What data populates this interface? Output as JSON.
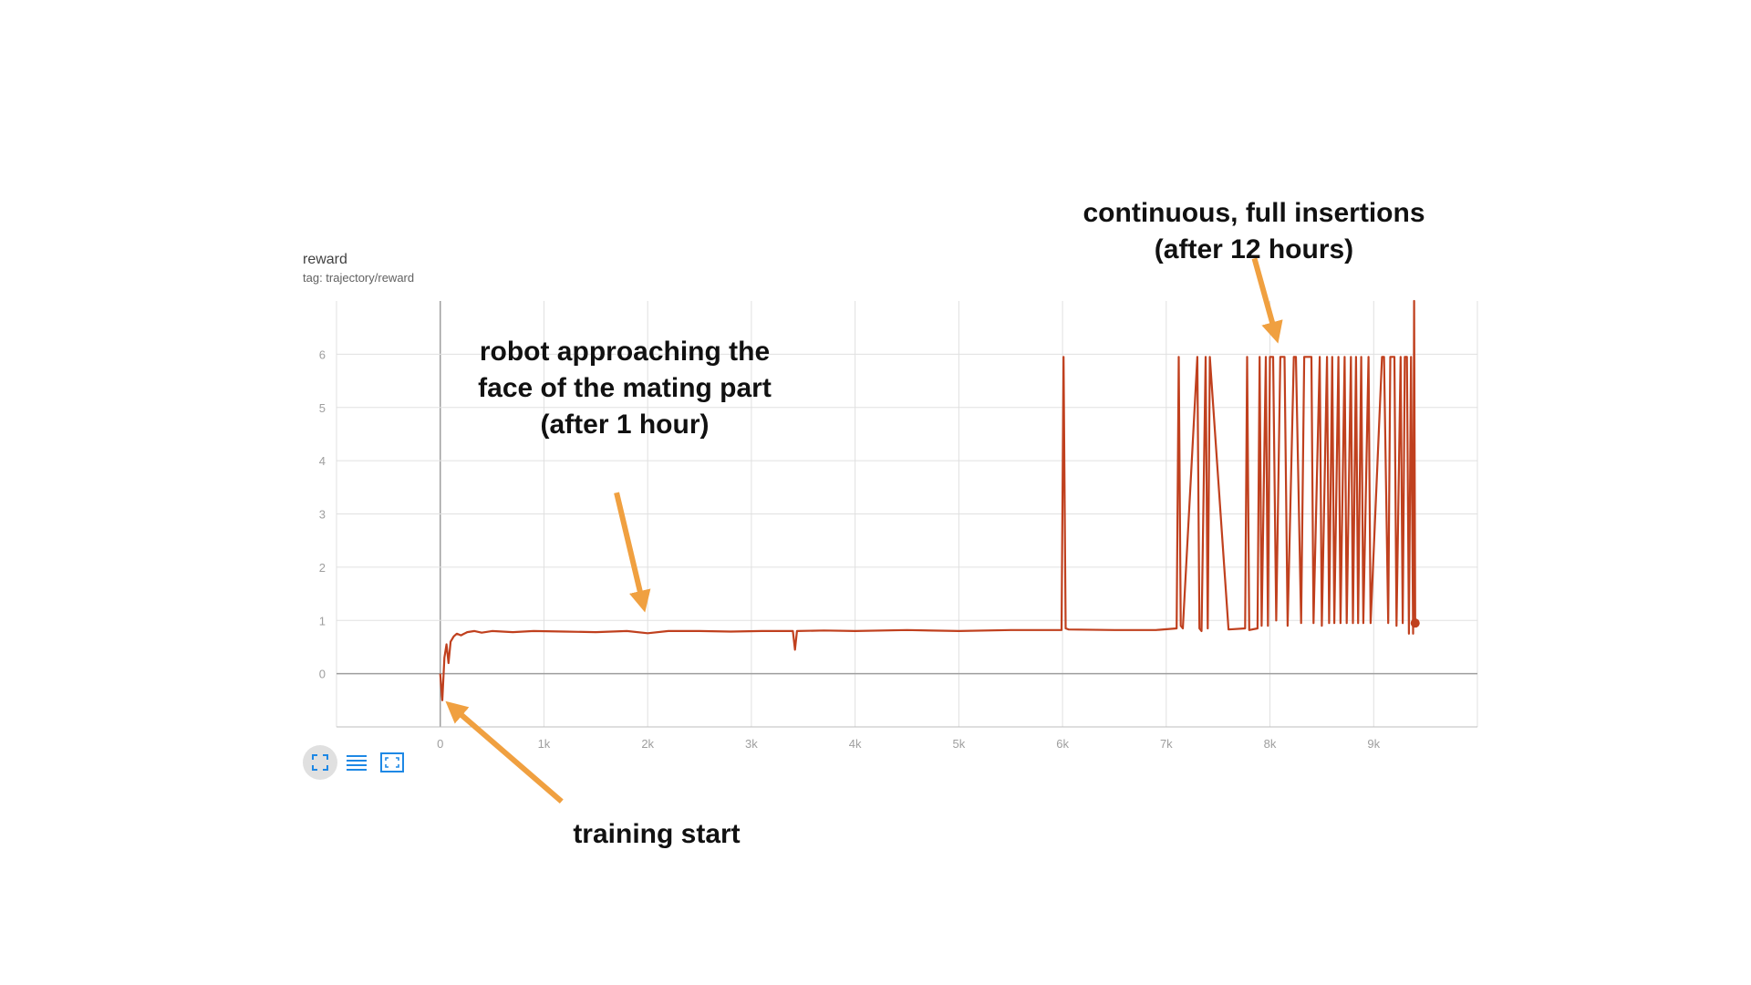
{
  "chart_data": {
    "type": "line",
    "title": "reward",
    "subtitle": "tag: trajectory/reward",
    "xlim": [
      -1000,
      10000
    ],
    "ylim": [
      -1,
      7
    ],
    "x_ticks": [
      0,
      1000,
      2000,
      3000,
      4000,
      5000,
      6000,
      7000,
      8000,
      9000
    ],
    "x_tick_labels": [
      "0",
      "1k",
      "2k",
      "3k",
      "4k",
      "5k",
      "6k",
      "7k",
      "8k",
      "9k"
    ],
    "y_ticks": [
      0,
      1,
      2,
      3,
      4,
      5,
      6
    ],
    "y_tick_labels": [
      "0",
      "1",
      "2",
      "3",
      "4",
      "5",
      "6"
    ],
    "grid": true,
    "series": [
      {
        "color": "#c0401e",
        "x": [
          0,
          20,
          40,
          60,
          80,
          100,
          130,
          160,
          200,
          260,
          330,
          400,
          500,
          700,
          900,
          1200,
          1500,
          1800,
          2000,
          2200,
          2500,
          2800,
          3100,
          3400,
          3420,
          3440,
          3700,
          4000,
          4500,
          5000,
          5500,
          5990,
          6010,
          6030,
          6060,
          6500,
          6900,
          7100,
          7120,
          7140,
          7160,
          7300,
          7320,
          7340,
          7380,
          7400,
          7420,
          7600,
          7760,
          7780,
          7800,
          7880,
          7900,
          7920,
          7960,
          7980,
          8000,
          8030,
          8060,
          8100,
          8140,
          8170,
          8230,
          8250,
          8300,
          8330,
          8400,
          8420,
          8480,
          8500,
          8550,
          8570,
          8600,
          8620,
          8660,
          8680,
          8720,
          8740,
          8780,
          8800,
          8830,
          8850,
          8880,
          8900,
          8950,
          8970,
          9080,
          9100,
          9140,
          9160,
          9200,
          9220,
          9260,
          9280,
          9300,
          9320,
          9340,
          9360,
          9380,
          9390,
          9400
        ],
        "y": [
          0.0,
          -0.5,
          0.3,
          0.55,
          0.2,
          0.6,
          0.7,
          0.75,
          0.72,
          0.78,
          0.8,
          0.77,
          0.8,
          0.78,
          0.8,
          0.79,
          0.78,
          0.8,
          0.76,
          0.8,
          0.8,
          0.79,
          0.8,
          0.8,
          0.45,
          0.8,
          0.81,
          0.8,
          0.82,
          0.8,
          0.82,
          0.82,
          5.95,
          0.85,
          0.83,
          0.82,
          0.82,
          0.85,
          5.95,
          0.9,
          0.85,
          5.95,
          0.85,
          0.8,
          5.95,
          0.85,
          5.95,
          0.83,
          0.85,
          5.95,
          0.82,
          0.85,
          5.95,
          0.9,
          5.95,
          0.9,
          5.95,
          5.95,
          1.0,
          5.95,
          5.95,
          0.9,
          5.95,
          5.95,
          0.95,
          5.95,
          5.95,
          0.95,
          5.95,
          0.9,
          5.95,
          0.95,
          5.95,
          0.95,
          5.95,
          0.95,
          5.95,
          0.95,
          5.95,
          0.95,
          5.95,
          0.95,
          5.95,
          0.95,
          5.95,
          0.95,
          5.95,
          5.95,
          0.95,
          5.95,
          5.95,
          0.9,
          5.95,
          0.95,
          5.95,
          5.95,
          0.75,
          5.95,
          0.75,
          7.0,
          0.95
        ]
      }
    ],
    "last_point": {
      "x": 9400,
      "y": 0.95
    },
    "annotations": [
      {
        "text": "robot approaching the\nface of the mating part\n(after 1 hour)",
        "arrow_from": [
          1700,
          3.4
        ],
        "arrow_to": [
          1950,
          1.35
        ]
      },
      {
        "text": "continuous, full insertions\n(after 12 hours)",
        "arrow_from": [
          7850,
          7.8
        ],
        "arrow_to": [
          8050,
          6.4
        ]
      },
      {
        "text": "training start",
        "arrow_from": [
          1170,
          -2.4
        ],
        "arrow_to": [
          130,
          -0.65
        ]
      }
    ]
  },
  "toolbar": {
    "fullscreen_icon": "fullscreen-icon",
    "data_icon": "data-table-icon",
    "fit_icon": "fit-domain-icon",
    "accent_color": "#1e88e5"
  },
  "colors": {
    "arrow": "#f0a040",
    "series": "#c0401e"
  }
}
